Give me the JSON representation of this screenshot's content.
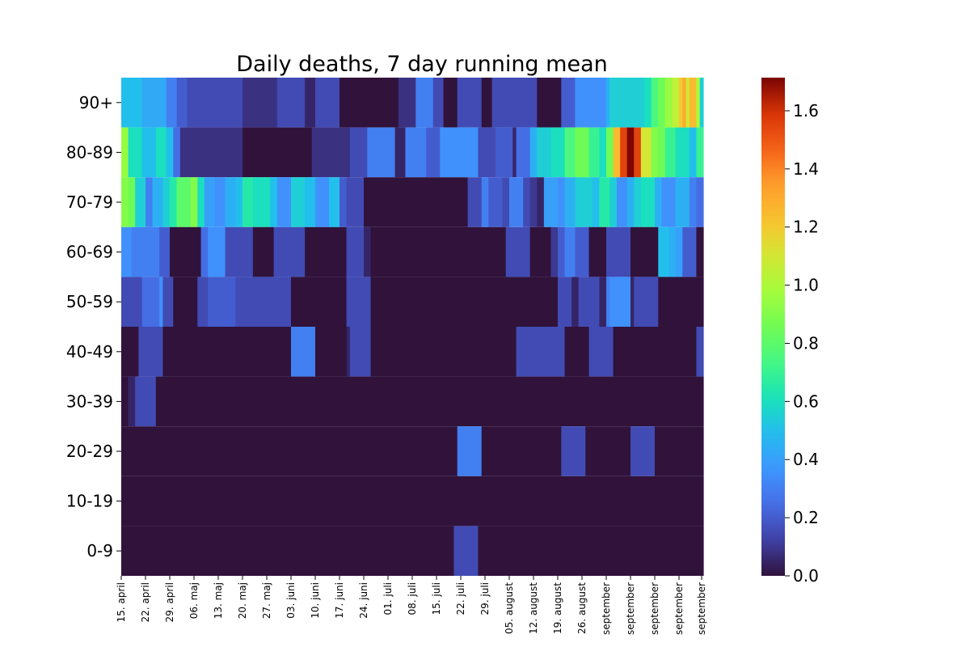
{
  "chart_data": {
    "type": "heatmap",
    "title": "Daily deaths, 7 day running mean",
    "rows": [
      "90+",
      "80-89",
      "70-79",
      "60-69",
      "50-59",
      "40-49",
      "30-39",
      "20-29",
      "10-19",
      "0-9"
    ],
    "x_tick_labels": [
      "15. april",
      "22. april",
      "29. april",
      "06. maj",
      "13. maj",
      "20. maj",
      "27. maj",
      "03. juni",
      "10. juni",
      "17. juni",
      "24. juni",
      "01. juli",
      "08. juli",
      "15. juli",
      "22. juli",
      "29. juli",
      "05. august",
      "12. august",
      "19. august",
      "26. august",
      "september",
      "september",
      "september",
      "september",
      "september"
    ],
    "colorbar": {
      "min": 0.0,
      "max": 1.714,
      "colormap": "turbo",
      "ticks": [
        "0.0",
        "0.2",
        "0.4",
        "0.6",
        "0.8",
        "1.0",
        "1.2",
        "1.4",
        "1.6"
      ]
    },
    "n_days": 168,
    "segments": {
      "90+": [
        [
          0,
          6,
          0.5
        ],
        [
          6,
          13,
          0.43
        ],
        [
          13,
          16,
          0.3
        ],
        [
          16,
          19,
          0.2
        ],
        [
          19,
          35,
          0.15
        ],
        [
          35,
          45,
          0.08
        ],
        [
          45,
          53,
          0.15
        ],
        [
          53,
          56,
          0.05
        ],
        [
          56,
          63,
          0.15
        ],
        [
          63,
          80,
          0.0
        ],
        [
          80,
          85,
          0.08
        ],
        [
          85,
          90,
          0.3
        ],
        [
          90,
          93,
          0.15
        ],
        [
          93,
          97,
          0.0
        ],
        [
          97,
          104,
          0.15
        ],
        [
          104,
          107,
          0.0
        ],
        [
          107,
          113,
          0.15
        ],
        [
          113,
          114,
          0.15
        ],
        [
          114,
          120,
          0.15
        ],
        [
          120,
          127,
          0.0
        ],
        [
          127,
          131,
          0.2
        ],
        [
          131,
          140,
          0.35
        ],
        [
          140,
          141,
          0.45
        ],
        [
          141,
          151,
          0.55
        ],
        [
          151,
          153,
          0.6
        ],
        [
          153,
          155,
          0.75
        ],
        [
          155,
          157,
          0.85
        ],
        [
          157,
          159,
          0.95
        ],
        [
          159,
          161,
          1.05
        ],
        [
          161,
          162,
          1.2
        ],
        [
          162,
          163,
          1.3
        ],
        [
          163,
          164,
          1.1
        ],
        [
          164,
          166,
          1.25
        ],
        [
          166,
          167,
          1.0
        ],
        [
          167,
          168,
          0.55
        ]
      ],
      "80-89": [
        [
          0,
          2,
          0.95
        ],
        [
          2,
          6,
          0.6
        ],
        [
          6,
          10,
          0.5
        ],
        [
          10,
          13,
          0.6
        ],
        [
          13,
          15,
          0.5
        ],
        [
          15,
          17,
          0.25
        ],
        [
          17,
          35,
          0.08
        ],
        [
          35,
          55,
          0.0
        ],
        [
          55,
          66,
          0.08
        ],
        [
          66,
          71,
          0.15
        ],
        [
          71,
          79,
          0.3
        ],
        [
          79,
          82,
          0.05
        ],
        [
          82,
          88,
          0.3
        ],
        [
          88,
          92,
          0.2
        ],
        [
          92,
          103,
          0.35
        ],
        [
          103,
          108,
          0.15
        ],
        [
          108,
          113,
          0.2
        ],
        [
          113,
          114,
          0.05
        ],
        [
          114,
          118,
          0.25
        ],
        [
          118,
          120,
          0.45
        ],
        [
          120,
          124,
          0.55
        ],
        [
          124,
          128,
          0.6
        ],
        [
          128,
          131,
          0.75
        ],
        [
          131,
          135,
          0.85
        ],
        [
          135,
          138,
          0.7
        ],
        [
          138,
          140,
          0.6
        ],
        [
          140,
          142,
          0.85
        ],
        [
          142,
          144,
          1.25
        ],
        [
          144,
          146,
          1.55
        ],
        [
          146,
          148,
          1.71
        ],
        [
          148,
          150,
          1.55
        ],
        [
          150,
          153,
          1.1
        ],
        [
          153,
          155,
          0.9
        ],
        [
          155,
          157,
          0.85
        ],
        [
          157,
          160,
          0.7
        ],
        [
          160,
          164,
          0.6
        ],
        [
          164,
          166,
          0.5
        ],
        [
          166,
          168,
          0.7
        ]
      ],
      "70-79": [
        [
          0,
          2,
          0.9
        ],
        [
          2,
          4,
          0.85
        ],
        [
          4,
          7,
          0.55
        ],
        [
          7,
          9,
          0.3
        ],
        [
          9,
          12,
          0.45
        ],
        [
          12,
          14,
          0.55
        ],
        [
          14,
          16,
          0.65
        ],
        [
          16,
          20,
          0.8
        ],
        [
          20,
          22,
          0.9
        ],
        [
          22,
          24,
          0.6
        ],
        [
          24,
          27,
          0.4
        ],
        [
          27,
          30,
          0.35
        ],
        [
          30,
          33,
          0.45
        ],
        [
          33,
          35,
          0.5
        ],
        [
          35,
          38,
          0.65
        ],
        [
          38,
          43,
          0.6
        ],
        [
          43,
          45,
          0.5
        ],
        [
          45,
          49,
          0.35
        ],
        [
          49,
          53,
          0.55
        ],
        [
          53,
          56,
          0.5
        ],
        [
          56,
          60,
          0.35
        ],
        [
          60,
          63,
          0.5
        ],
        [
          63,
          65,
          0.2
        ],
        [
          65,
          70,
          0.15
        ],
        [
          70,
          80,
          0.0
        ],
        [
          80,
          100,
          0.0
        ],
        [
          100,
          104,
          0.15
        ],
        [
          104,
          106,
          0.3
        ],
        [
          106,
          110,
          0.2
        ],
        [
          110,
          112,
          0.15
        ],
        [
          112,
          116,
          0.3
        ],
        [
          116,
          118,
          0.15
        ],
        [
          118,
          120,
          0.1
        ],
        [
          120,
          122,
          0.05
        ],
        [
          122,
          126,
          0.4
        ],
        [
          126,
          128,
          0.35
        ],
        [
          128,
          131,
          0.45
        ],
        [
          131,
          136,
          0.55
        ],
        [
          136,
          138,
          0.5
        ],
        [
          138,
          141,
          0.65
        ],
        [
          141,
          143,
          0.55
        ],
        [
          143,
          146,
          0.35
        ],
        [
          146,
          148,
          0.45
        ],
        [
          148,
          150,
          0.55
        ],
        [
          150,
          154,
          0.6
        ],
        [
          154,
          156,
          0.45
        ],
        [
          156,
          160,
          0.35
        ],
        [
          160,
          164,
          0.45
        ],
        [
          164,
          166,
          0.3
        ],
        [
          166,
          168,
          0.25
        ]
      ],
      "60-69": [
        [
          0,
          3,
          0.35
        ],
        [
          3,
          5,
          0.3
        ],
        [
          5,
          11,
          0.3
        ],
        [
          11,
          14,
          0.2
        ],
        [
          14,
          23,
          0.0
        ],
        [
          23,
          25,
          0.25
        ],
        [
          25,
          30,
          0.35
        ],
        [
          30,
          38,
          0.15
        ],
        [
          38,
          44,
          0.0
        ],
        [
          44,
          53,
          0.15
        ],
        [
          53,
          65,
          0.0
        ],
        [
          65,
          70,
          0.15
        ],
        [
          70,
          72,
          0.05
        ],
        [
          72,
          111,
          0.0
        ],
        [
          111,
          118,
          0.15
        ],
        [
          118,
          124,
          0.0
        ],
        [
          124,
          126,
          0.1
        ],
        [
          126,
          128,
          0.2
        ],
        [
          128,
          131,
          0.3
        ],
        [
          131,
          135,
          0.2
        ],
        [
          135,
          140,
          0.0
        ],
        [
          140,
          147,
          0.15
        ],
        [
          147,
          155,
          0.0
        ],
        [
          155,
          158,
          0.5
        ],
        [
          158,
          160,
          0.45
        ],
        [
          160,
          162,
          0.4
        ],
        [
          162,
          166,
          0.2
        ],
        [
          166,
          168,
          0.0
        ]
      ],
      "50-59": [
        [
          0,
          6,
          0.15
        ],
        [
          6,
          11,
          0.25
        ],
        [
          11,
          12,
          0.35
        ],
        [
          12,
          15,
          0.15
        ],
        [
          15,
          22,
          0.0
        ],
        [
          22,
          25,
          0.15
        ],
        [
          25,
          29,
          0.2
        ],
        [
          29,
          33,
          0.2
        ],
        [
          33,
          38,
          0.15
        ],
        [
          38,
          45,
          0.15
        ],
        [
          45,
          49,
          0.15
        ],
        [
          49,
          53,
          0.0
        ],
        [
          53,
          60,
          0.0
        ],
        [
          60,
          65,
          0.0
        ],
        [
          65,
          72,
          0.15
        ],
        [
          72,
          85,
          0.0
        ],
        [
          85,
          120,
          0.0
        ],
        [
          120,
          126,
          0.0
        ],
        [
          126,
          130,
          0.15
        ],
        [
          130,
          132,
          0.05
        ],
        [
          132,
          138,
          0.15
        ],
        [
          138,
          140,
          0.05
        ],
        [
          140,
          141,
          0.3
        ],
        [
          141,
          147,
          0.35
        ],
        [
          147,
          148,
          0.05
        ],
        [
          148,
          155,
          0.15
        ],
        [
          155,
          168,
          0.0
        ]
      ],
      "40-49": [
        [
          0,
          5,
          0.0
        ],
        [
          5,
          12,
          0.15
        ],
        [
          12,
          49,
          0.0
        ],
        [
          49,
          56,
          0.3
        ],
        [
          56,
          65,
          0.0
        ],
        [
          65,
          66,
          0.05
        ],
        [
          66,
          72,
          0.15
        ],
        [
          72,
          75,
          0.0
        ],
        [
          75,
          114,
          0.0
        ],
        [
          114,
          128,
          0.15
        ],
        [
          128,
          135,
          0.0
        ],
        [
          135,
          142,
          0.15
        ],
        [
          142,
          166,
          0.0
        ],
        [
          166,
          168,
          0.15
        ]
      ],
      "30-39": [
        [
          0,
          2,
          0.0
        ],
        [
          2,
          4,
          0.05
        ],
        [
          4,
          10,
          0.15
        ],
        [
          10,
          168,
          0.0
        ]
      ],
      "20-29": [
        [
          0,
          97,
          0.0
        ],
        [
          97,
          104,
          0.3
        ],
        [
          104,
          127,
          0.0
        ],
        [
          127,
          134,
          0.15
        ],
        [
          134,
          147,
          0.0
        ],
        [
          147,
          154,
          0.15
        ],
        [
          154,
          168,
          0.0
        ]
      ],
      "10-19": [
        [
          0,
          168,
          0.0
        ]
      ],
      "0-9": [
        [
          0,
          96,
          0.0
        ],
        [
          96,
          103,
          0.15
        ],
        [
          103,
          168,
          0.0
        ]
      ]
    }
  }
}
